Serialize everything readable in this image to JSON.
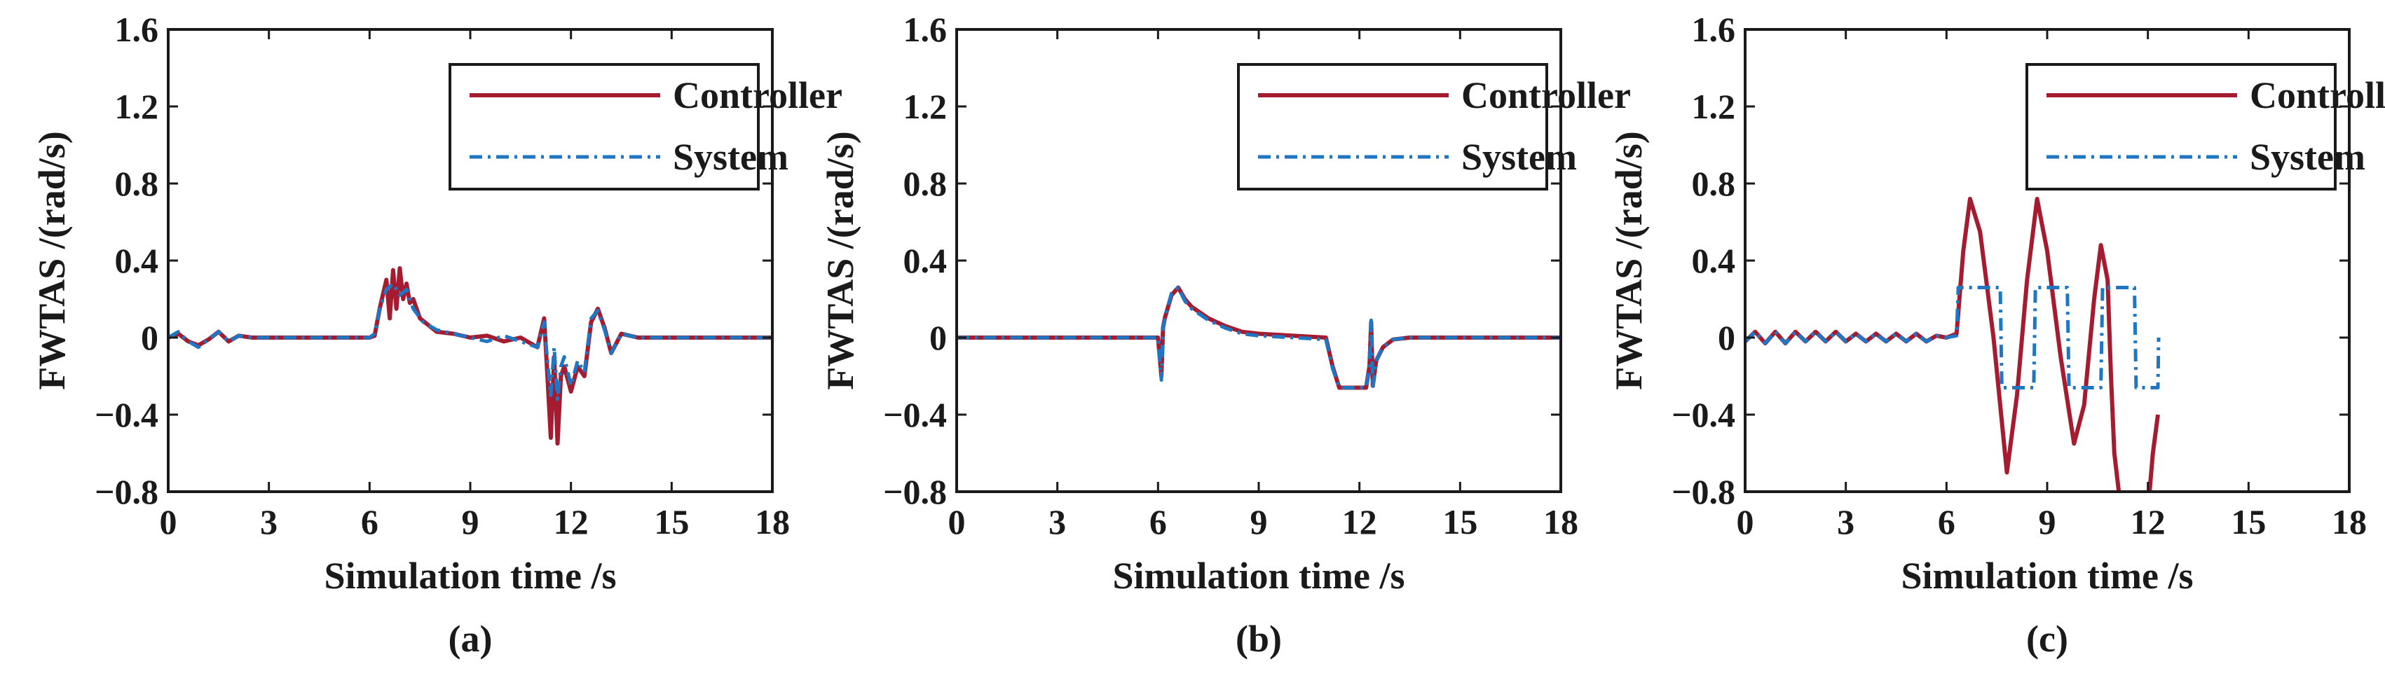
{
  "colors": {
    "controller": "#a51c30",
    "system": "#1f77c4",
    "axes": "#1a1a1a"
  },
  "chart_data": [
    {
      "type": "line",
      "panel_label": "(a)",
      "xlabel": "Simulation time /s",
      "ylabel": "FWTAS /(rad/s)",
      "xlim": [
        0,
        18
      ],
      "ylim": [
        -0.8,
        1.6
      ],
      "xticks": [
        0,
        3,
        6,
        9,
        12,
        15,
        18
      ],
      "yticks": [
        -0.8,
        -0.4,
        0,
        0.4,
        0.8,
        1.2,
        1.6
      ],
      "ytick_labels": [
        "−0.8",
        "−0.4",
        "0",
        "0.4",
        "0.8",
        "1.2",
        "1.6"
      ],
      "grid": false,
      "legend_position": "top-right",
      "series": [
        {
          "name": "Controller",
          "color": "#a51c30",
          "linestyle": "solid",
          "x": [
            0,
            0.3,
            0.6,
            0.9,
            1.2,
            1.5,
            1.8,
            2.1,
            2.5,
            3,
            4,
            5,
            6,
            6.15,
            6.3,
            6.5,
            6.6,
            6.7,
            6.8,
            6.9,
            7.0,
            7.1,
            7.2,
            7.3,
            7.5,
            8,
            8.5,
            9,
            9.5,
            10,
            10.5,
            11,
            11.2,
            11.3,
            11.4,
            11.5,
            11.6,
            11.7,
            11.8,
            12.0,
            12.2,
            12.4,
            12.6,
            12.8,
            13.0,
            13.2,
            13.5,
            14,
            15,
            16,
            17,
            18
          ],
          "y": [
            0,
            0.02,
            -0.02,
            -0.04,
            -0.01,
            0.03,
            -0.02,
            0.01,
            0,
            0,
            0,
            0,
            0,
            0.01,
            0.15,
            0.3,
            0.1,
            0.35,
            0.15,
            0.36,
            0.2,
            0.28,
            0.18,
            0.2,
            0.1,
            0.03,
            0.02,
            0,
            0.01,
            -0.02,
            0,
            -0.05,
            0.1,
            -0.2,
            -0.52,
            -0.1,
            -0.55,
            -0.2,
            -0.15,
            -0.28,
            -0.15,
            -0.2,
            0.08,
            0.15,
            0.05,
            -0.08,
            0.02,
            0,
            0,
            0,
            0,
            0
          ]
        },
        {
          "name": "System",
          "color": "#1f77c4",
          "linestyle": "dashdot",
          "x": [
            0,
            0.3,
            0.6,
            0.9,
            1.2,
            1.5,
            1.8,
            2.1,
            2.5,
            3,
            4,
            5,
            6,
            6.15,
            6.3,
            6.5,
            6.7,
            6.9,
            7.1,
            7.3,
            7.6,
            8,
            8.5,
            9,
            9.5,
            10,
            10.5,
            11,
            11.2,
            11.3,
            11.4,
            11.5,
            11.6,
            11.7,
            11.8,
            12.0,
            12.2,
            12.4,
            12.6,
            12.8,
            13.0,
            13.2,
            13.5,
            14,
            15,
            16,
            17,
            18
          ],
          "y": [
            0,
            0.03,
            -0.02,
            -0.05,
            -0.01,
            0.03,
            -0.02,
            0.01,
            0,
            0,
            0,
            0,
            0,
            0.02,
            0.15,
            0.25,
            0.28,
            0.22,
            0.25,
            0.15,
            0.08,
            0.04,
            0.02,
            0,
            -0.02,
            0.01,
            -0.02,
            -0.05,
            0.08,
            -0.12,
            -0.3,
            -0.05,
            -0.32,
            -0.15,
            -0.1,
            -0.25,
            -0.12,
            -0.18,
            0.1,
            0.14,
            0.04,
            -0.08,
            0.02,
            0,
            0,
            0,
            0,
            0
          ]
        }
      ]
    },
    {
      "type": "line",
      "panel_label": "(b)",
      "xlabel": "Simulation time /s",
      "ylabel": "FWTAS /(rad/s)",
      "xlim": [
        0,
        18
      ],
      "ylim": [
        -0.8,
        1.6
      ],
      "xticks": [
        0,
        3,
        6,
        9,
        12,
        15,
        18
      ],
      "yticks": [
        -0.8,
        -0.4,
        0,
        0.4,
        0.8,
        1.2,
        1.6
      ],
      "ytick_labels": [
        "−0.8",
        "−0.4",
        "0",
        "0.4",
        "0.8",
        "1.2",
        "1.6"
      ],
      "grid": false,
      "legend_position": "top-right",
      "series": [
        {
          "name": "Controller",
          "color": "#a51c30",
          "linestyle": "solid",
          "x": [
            0,
            6,
            6.1,
            6.15,
            6.2,
            6.4,
            6.6,
            6.8,
            7,
            7.5,
            8,
            8.5,
            9,
            10,
            11,
            11.2,
            11.4,
            11.6,
            12.2,
            12.3,
            12.35,
            12.4,
            12.5,
            12.7,
            13,
            13.5,
            18
          ],
          "y": [
            0,
            0,
            -0.2,
            0.05,
            0.1,
            0.22,
            0.26,
            0.2,
            0.16,
            0.1,
            0.06,
            0.03,
            0.02,
            0.01,
            0,
            -0.15,
            -0.26,
            -0.26,
            -0.26,
            -0.15,
            0.08,
            -0.25,
            -0.12,
            -0.05,
            -0.01,
            0,
            0
          ]
        },
        {
          "name": "System",
          "color": "#1f77c4",
          "linestyle": "dashdot",
          "x": [
            0,
            6,
            6.1,
            6.15,
            6.2,
            6.4,
            6.6,
            6.8,
            7,
            7.5,
            8,
            8.5,
            9,
            10,
            11,
            11.2,
            11.4,
            11.6,
            12.2,
            12.3,
            12.35,
            12.4,
            12.5,
            12.7,
            13,
            13.5,
            18
          ],
          "y": [
            0,
            0,
            -0.22,
            0.04,
            0.1,
            0.23,
            0.26,
            0.19,
            0.15,
            0.09,
            0.05,
            0.02,
            0.01,
            0,
            -0.01,
            -0.16,
            -0.26,
            -0.26,
            -0.26,
            -0.16,
            0.09,
            -0.26,
            -0.12,
            -0.05,
            -0.01,
            0,
            0
          ]
        }
      ]
    },
    {
      "type": "line",
      "panel_label": "(c)",
      "xlabel": "Simulation time /s",
      "ylabel": "FWTAS /(rad/s)",
      "xlim": [
        0,
        18
      ],
      "ylim": [
        -0.8,
        1.6
      ],
      "xticks": [
        0,
        3,
        6,
        9,
        12,
        15,
        18
      ],
      "yticks": [
        -0.8,
        -0.4,
        0,
        0.4,
        0.8,
        1.2,
        1.6
      ],
      "ytick_labels": [
        "−0.8",
        "−0.4",
        "0",
        "0.4",
        "0.8",
        "1.2",
        "1.6"
      ],
      "grid": false,
      "legend_position": "top-right",
      "series": [
        {
          "name": "Controller",
          "color": "#a51c30",
          "linestyle": "solid",
          "x": [
            0,
            0.3,
            0.6,
            0.9,
            1.2,
            1.5,
            1.8,
            2.1,
            2.4,
            2.7,
            3.0,
            3.3,
            3.6,
            3.9,
            4.2,
            4.5,
            4.8,
            5.1,
            5.4,
            5.7,
            6.0,
            6.3,
            6.5,
            6.7,
            7.0,
            7.4,
            7.8,
            8.1,
            8.4,
            8.7,
            9.0,
            9.4,
            9.8,
            10.1,
            10.4,
            10.6,
            10.8,
            10.9,
            11.0,
            11.2,
            11.5,
            11.8,
            12.0,
            12.15,
            12.3
          ],
          "y": [
            -0.02,
            0.03,
            -0.03,
            0.03,
            -0.03,
            0.03,
            -0.02,
            0.03,
            -0.02,
            0.03,
            -0.02,
            0.02,
            -0.02,
            0.02,
            -0.02,
            0.02,
            -0.02,
            0.02,
            -0.02,
            0.01,
            0,
            0.02,
            0.45,
            0.72,
            0.55,
            0,
            -0.7,
            -0.3,
            0.3,
            0.72,
            0.45,
            -0.1,
            -0.55,
            -0.35,
            0.2,
            0.48,
            0.3,
            -0.2,
            -0.6,
            -0.9,
            -1.4,
            -1.1,
            -0.9,
            -0.6,
            -0.4
          ]
        },
        {
          "name": "System",
          "color": "#1f77c4",
          "linestyle": "dashdot",
          "x": [
            0,
            0.3,
            0.6,
            0.9,
            1.2,
            1.5,
            1.8,
            2.1,
            2.4,
            2.7,
            3.0,
            3.3,
            3.6,
            3.9,
            4.2,
            4.5,
            4.8,
            5.1,
            5.4,
            5.7,
            6.0,
            6.3,
            6.35,
            7.6,
            7.65,
            8.6,
            8.65,
            9.6,
            9.65,
            10.6,
            10.65,
            11.6,
            11.65,
            12.3,
            12.32
          ],
          "y": [
            -0.02,
            0.03,
            -0.03,
            0.03,
            -0.03,
            0.03,
            -0.02,
            0.03,
            -0.02,
            0.03,
            -0.02,
            0.02,
            -0.02,
            0.02,
            -0.02,
            0.02,
            -0.02,
            0.02,
            -0.02,
            0.01,
            0,
            0.01,
            0.26,
            0.26,
            -0.26,
            -0.26,
            0.26,
            0.26,
            -0.26,
            -0.26,
            0.26,
            0.26,
            -0.26,
            -0.26,
            0
          ]
        }
      ]
    }
  ]
}
